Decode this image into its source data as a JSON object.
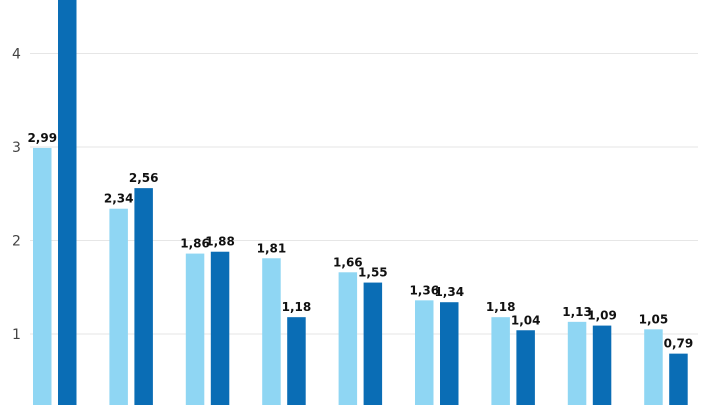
{
  "chart_data": {
    "type": "bar",
    "categories": [
      "",
      "",
      "",
      "",
      "",
      "",
      "",
      "",
      ""
    ],
    "series": [
      {
        "color": "#8fd6f3",
        "values": [
          2.99,
          2.34,
          1.86,
          1.81,
          1.66,
          1.36,
          1.18,
          1.13,
          1.05
        ],
        "labels": [
          "2,99",
          "2,34",
          "1,86",
          "1,81",
          "1,66",
          "1,36",
          "1,18",
          "1,13",
          "1,05"
        ]
      },
      {
        "color": "#0a6db5",
        "values": [
          4.6,
          2.56,
          1.88,
          1.18,
          1.55,
          1.34,
          1.04,
          1.09,
          0.79
        ],
        "labels": [
          "",
          "2,56",
          "1,88",
          "1,18",
          "1,55",
          "1,34",
          "1,04",
          "1,09",
          "0,79"
        ]
      }
    ],
    "y_ticks": [
      {
        "value": 1,
        "label": "1"
      },
      {
        "value": 2,
        "label": "2"
      },
      {
        "value": 3,
        "label": "3"
      },
      {
        "value": 4,
        "label": "4"
      }
    ],
    "ylim": [
      0.25,
      4.6
    ],
    "grid": true,
    "title": "",
    "xlabel": "",
    "ylabel": ""
  }
}
